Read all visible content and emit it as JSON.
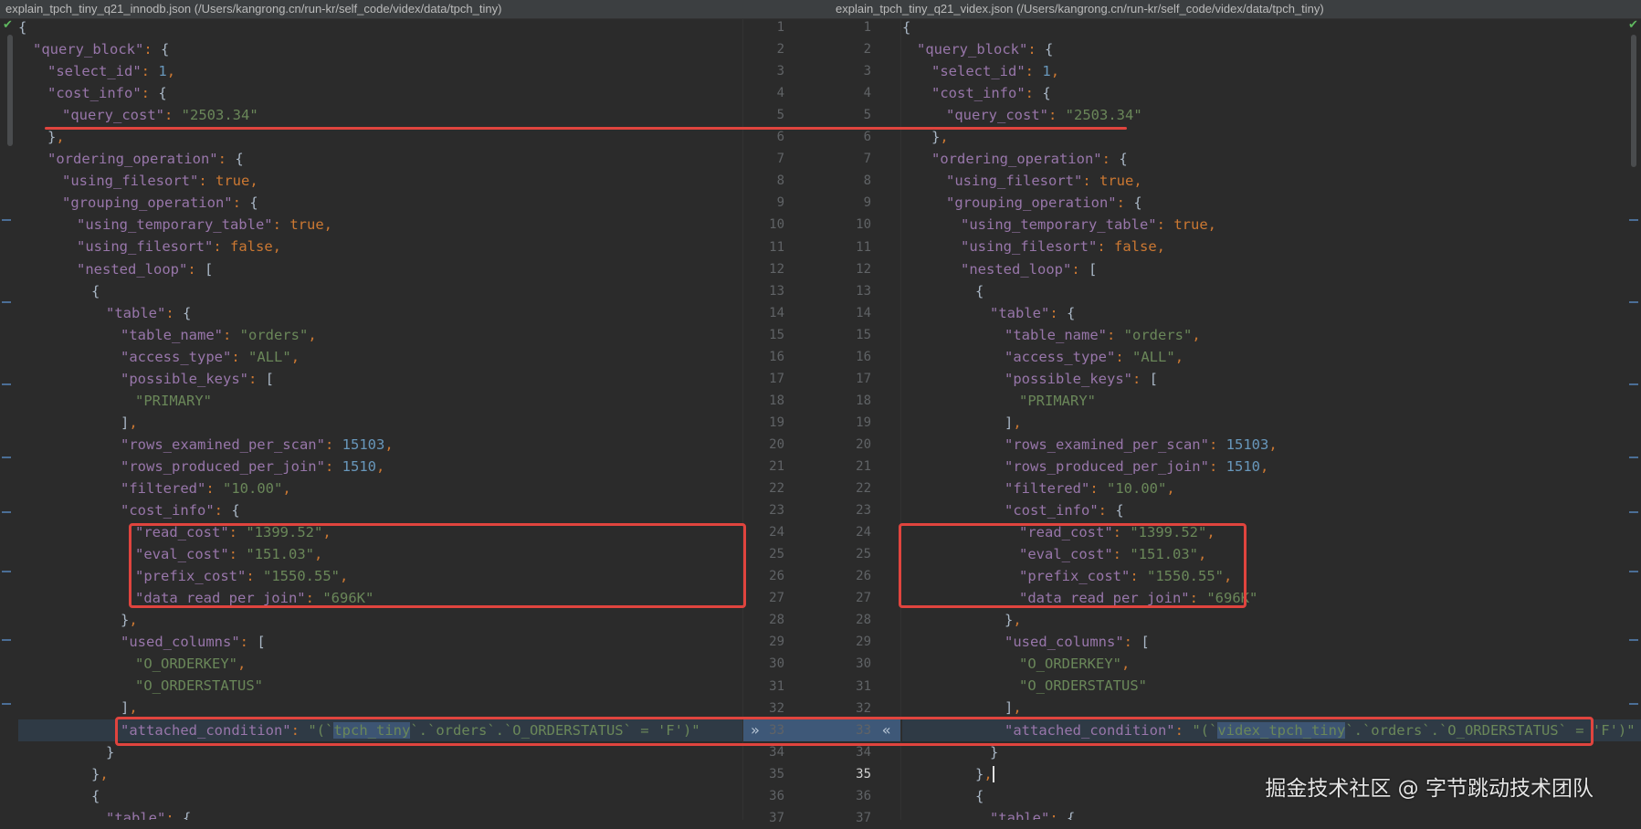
{
  "left": {
    "title": "explain_tpch_tiny_q21_innodb.json (/Users/kangrong.cn/run-kr/self_code/videx/data/tpch_tiny)",
    "highlight": "tpch_tiny",
    "lines": [
      "{",
      "  \"query_block\": {",
      "    \"select_id\": 1,",
      "    \"cost_info\": {",
      "      \"query_cost\": \"2503.34\"",
      "    },",
      "    \"ordering_operation\": {",
      "      \"using_filesort\": true,",
      "      \"grouping_operation\": {",
      "        \"using_temporary_table\": true,",
      "        \"using_filesort\": false,",
      "        \"nested_loop\": [",
      "          {",
      "            \"table\": {",
      "              \"table_name\": \"orders\",",
      "              \"access_type\": \"ALL\",",
      "              \"possible_keys\": [",
      "                \"PRIMARY\"",
      "              ],",
      "              \"rows_examined_per_scan\": 15103,",
      "              \"rows_produced_per_join\": 1510,",
      "              \"filtered\": \"10.00\",",
      "              \"cost_info\": {",
      "                \"read_cost\": \"1399.52\",",
      "                \"eval_cost\": \"151.03\",",
      "                \"prefix_cost\": \"1550.55\",",
      "                \"data_read_per_join\": \"696K\"",
      "              },",
      "              \"used_columns\": [",
      "                \"O_ORDERKEY\",",
      "                \"O_ORDERSTATUS\"",
      "              ],",
      "              \"attached_condition\": \"(`tpch_tiny`.`orders`.`O_ORDERSTATUS` = 'F')\"",
      "            }",
      "          },",
      "          {",
      "            \"table\": {"
    ]
  },
  "right": {
    "title": "explain_tpch_tiny_q21_videx.json (/Users/kangrong.cn/run-kr/self_code/videx/data/tpch_tiny)",
    "highlight": "videx_tpch_tiny",
    "lines": [
      "{",
      "  \"query_block\": {",
      "    \"select_id\": 1,",
      "    \"cost_info\": {",
      "      \"query_cost\": \"2503.34\"",
      "    },",
      "    \"ordering_operation\": {",
      "      \"using_filesort\": true,",
      "      \"grouping_operation\": {",
      "        \"using_temporary_table\": true,",
      "        \"using_filesort\": false,",
      "        \"nested_loop\": [",
      "          {",
      "            \"table\": {",
      "              \"table_name\": \"orders\",",
      "              \"access_type\": \"ALL\",",
      "              \"possible_keys\": [",
      "                \"PRIMARY\"",
      "              ],",
      "              \"rows_examined_per_scan\": 15103,",
      "              \"rows_produced_per_join\": 1510,",
      "              \"filtered\": \"10.00\",",
      "              \"cost_info\": {",
      "                \"read_cost\": \"1399.52\",",
      "                \"eval_cost\": \"151.03\",",
      "                \"prefix_cost\": \"1550.55\",",
      "                \"data_read_per_join\": \"696K\"",
      "              },",
      "              \"used_columns\": [",
      "                \"O_ORDERKEY\",",
      "                \"O_ORDERSTATUS\"",
      "              ],",
      "              \"attached_condition\": \"(`videx_tpch_tiny`.`orders`.`O_ORDERSTATUS` = 'F')\"",
      "            }",
      "          },",
      "          {",
      "            \"table\": {"
    ]
  },
  "diff": {
    "changed_line": 33,
    "caret_line": 35,
    "apply_left_icon": "double-chevron-right-icon",
    "apply_right_icon": "double-chevron-left-icon",
    "apply_left_glyph": "»",
    "apply_right_glyph": "«"
  },
  "colors": {
    "background": "#2b2b2b",
    "key": "#9876aa",
    "string": "#6a8759",
    "number": "#6897bb",
    "keyword": "#cc7832",
    "annotation_red": "#e0443e",
    "changed_line": "#2f3a45",
    "changed_fragment": "#3d5573"
  },
  "watermark": "掘金技术社区 @ 字节跳动技术团队"
}
